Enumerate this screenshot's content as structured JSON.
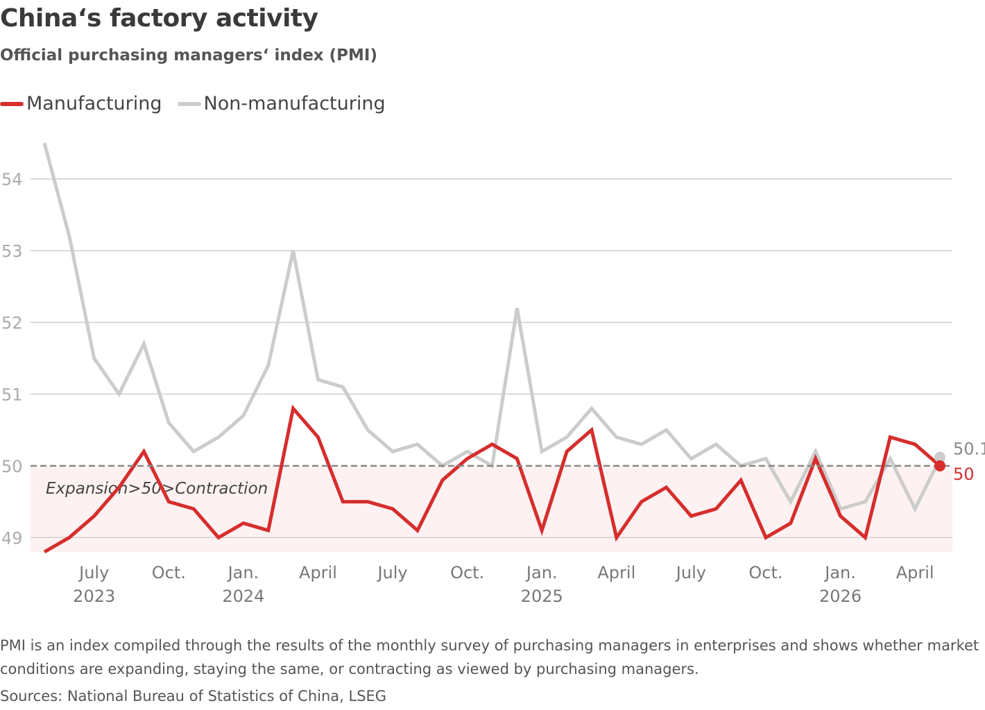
{
  "title": "China‘s factory activity",
  "subtitle": "Official purchasing managers‘ index (PMI)",
  "legend": [
    {
      "name": "Manufacturing",
      "color": "#d62d2d"
    },
    {
      "name": "Non-manufacturing",
      "color": "#cccccc"
    }
  ],
  "note": "PMI is an index compiled through the results of the monthly survey of purchasing managers in enterprises and shows whether market conditions are expanding, staying the same, or contracting as viewed by purchasing managers.",
  "source": "Sources: National Bureau of Statistics of China, LSEG",
  "chart_data": {
    "type": "line",
    "title": "China‘s factory activity",
    "subtitle": "Official purchasing managers‘ index (PMI)",
    "x": [
      "2023-05",
      "2023-06",
      "2023-07",
      "2023-08",
      "2023-09",
      "2023-10",
      "2023-11",
      "2023-12",
      "2024-01",
      "2024-02",
      "2024-03",
      "2024-04",
      "2024-05",
      "2024-06",
      "2024-07",
      "2024-08",
      "2024-09",
      "2024-10",
      "2024-11",
      "2024-12",
      "2025-01",
      "2025-02",
      "2025-03",
      "2025-04",
      "2025-05",
      "2025-06",
      "2025-07",
      "2025-08",
      "2025-09",
      "2025-10",
      "2025-11",
      "2025-12",
      "2026-01",
      "2026-02",
      "2026-03",
      "2026-04",
      "2026-05"
    ],
    "ylim": [
      48.8,
      54.6
    ],
    "yticks": [
      49,
      50,
      51,
      52,
      53,
      54
    ],
    "grid": true,
    "legend_position": "top-left",
    "reference_line": {
      "y": 50,
      "label": "Expansion>50>Contraction"
    },
    "x_tick_labels": [
      {
        "x": "2023-07",
        "label": "July",
        "year": "2023"
      },
      {
        "x": "2023-10",
        "label": "Oct.",
        "year": ""
      },
      {
        "x": "2024-01",
        "label": "Jan.",
        "year": "2024"
      },
      {
        "x": "2024-04",
        "label": "April",
        "year": ""
      },
      {
        "x": "2024-07",
        "label": "July",
        "year": ""
      },
      {
        "x": "2024-10",
        "label": "Oct.",
        "year": ""
      },
      {
        "x": "2025-01",
        "label": "Jan.",
        "year": "2025"
      },
      {
        "x": "2025-04",
        "label": "April",
        "year": ""
      },
      {
        "x": "2025-07",
        "label": "July",
        "year": ""
      },
      {
        "x": "2025-10",
        "label": "Oct.",
        "year": ""
      },
      {
        "x": "2026-01",
        "label": "Jan.",
        "year": "2026"
      },
      {
        "x": "2026-04",
        "label": "April",
        "year": ""
      }
    ],
    "series": [
      {
        "name": "Non-manufacturing",
        "color": "#cccccc",
        "end_label": "50.1",
        "values": [
          54.5,
          53.2,
          51.5,
          51.0,
          51.7,
          50.6,
          50.2,
          50.4,
          50.7,
          51.4,
          53.0,
          51.2,
          51.1,
          50.5,
          50.2,
          50.3,
          50.0,
          50.2,
          50.0,
          52.2,
          50.2,
          50.4,
          50.8,
          50.4,
          50.3,
          50.5,
          50.1,
          50.3,
          50.0,
          50.1,
          49.5,
          50.2,
          49.4,
          49.5,
          50.1,
          49.4,
          50.1
        ]
      },
      {
        "name": "Manufacturing",
        "color": "#d62d2d",
        "end_label": "50",
        "values": [
          48.8,
          49.0,
          49.3,
          49.7,
          50.2,
          49.5,
          49.4,
          49.0,
          49.2,
          49.1,
          50.8,
          50.4,
          49.5,
          49.5,
          49.4,
          49.1,
          49.8,
          50.1,
          50.3,
          50.1,
          49.1,
          50.2,
          50.5,
          49.0,
          49.5,
          49.7,
          49.3,
          49.4,
          49.8,
          49.0,
          49.2,
          50.1,
          49.3,
          49.0,
          50.4,
          50.3,
          50.0
        ]
      }
    ]
  }
}
